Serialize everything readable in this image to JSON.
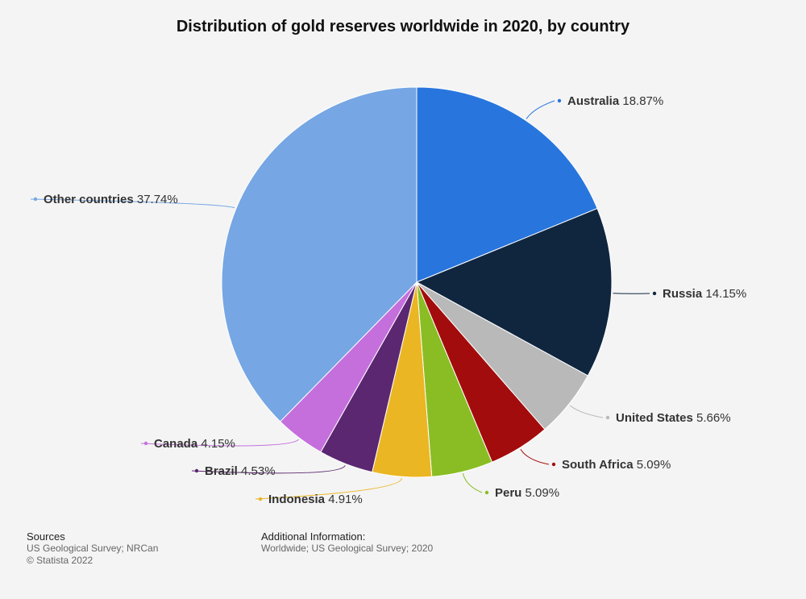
{
  "chart_data": {
    "type": "pie",
    "title": "Distribution of gold reserves worldwide in 2020, by country",
    "slices": [
      {
        "label": "Australia",
        "value": 18.87,
        "value_label": "18.87%",
        "color": "#2876dd"
      },
      {
        "label": "Russia",
        "value": 14.15,
        "value_label": "14.15%",
        "color": "#10263f"
      },
      {
        "label": "United States",
        "value": 5.66,
        "value_label": "5.66%",
        "color": "#b9b9b9"
      },
      {
        "label": "South Africa",
        "value": 5.09,
        "value_label": "5.09%",
        "color": "#a30c0c"
      },
      {
        "label": "Peru",
        "value": 5.09,
        "value_label": "5.09%",
        "color": "#8abd24"
      },
      {
        "label": "Indonesia",
        "value": 4.91,
        "value_label": "4.91%",
        "color": "#ebb623"
      },
      {
        "label": "Brazil",
        "value": 4.53,
        "value_label": "4.53%",
        "color": "#5b2771"
      },
      {
        "label": "Canada",
        "value": 4.15,
        "value_label": "4.15%",
        "color": "#c56fdd"
      },
      {
        "label": "Other countries",
        "value": 37.74,
        "value_label": "37.74%",
        "color": "#76a6e3"
      }
    ],
    "legend": "none"
  },
  "footer": {
    "sources_heading": "Sources",
    "sources_text": "US Geological Survey; NRCan",
    "copyright": "© Statista 2022",
    "additional_heading": "Additional Information:",
    "additional_text": "Worldwide; US Geological Survey; 2020"
  }
}
